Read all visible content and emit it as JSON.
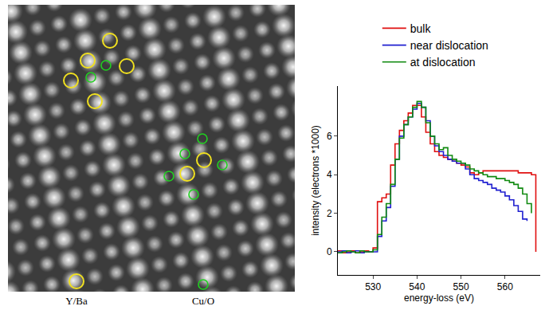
{
  "chart_data": {
    "type": "line",
    "x": [
      522,
      523,
      524,
      525,
      526,
      527,
      528,
      529,
      530,
      531,
      532,
      533,
      534,
      535,
      536,
      537,
      538,
      539,
      540,
      541,
      542,
      543,
      544,
      545,
      546,
      547,
      548,
      549,
      550,
      551,
      552,
      553,
      554,
      555,
      556,
      557,
      558,
      559,
      560,
      561,
      562,
      563,
      564,
      565,
      566,
      567
    ],
    "series": [
      {
        "name": "bulk",
        "color": "#e01010",
        "values": [
          0.05,
          -0.05,
          0.0,
          0.05,
          -0.05,
          0.0,
          0.05,
          0.0,
          0.2,
          2.6,
          2.8,
          3.0,
          4.5,
          5.6,
          6.3,
          6.8,
          7.2,
          7.6,
          7.6,
          7.0,
          6.2,
          5.6,
          5.2,
          5.0,
          4.9,
          4.8,
          4.7,
          4.6,
          4.5,
          4.4,
          4.1,
          4.0,
          4.1,
          4.2,
          4.2,
          4.2,
          4.2,
          4.2,
          4.2,
          4.2,
          4.2,
          4.1,
          4.1,
          4.1,
          4.0,
          0.0
        ]
      },
      {
        "name": "near dislocation",
        "color": "#2020d0",
        "values": [
          0.0,
          0.05,
          -0.05,
          0.0,
          0.05,
          -0.05,
          0.0,
          0.0,
          0.0,
          0.8,
          1.6,
          2.3,
          3.4,
          4.8,
          6.0,
          6.6,
          7.0,
          7.4,
          7.7,
          7.5,
          6.8,
          6.0,
          5.5,
          5.2,
          5.0,
          4.8,
          4.7,
          4.6,
          4.6,
          4.3,
          4.0,
          3.8,
          3.7,
          3.6,
          3.5,
          3.3,
          3.2,
          3.1,
          2.9,
          2.7,
          2.4,
          2.1,
          1.7,
          1.6,
          null,
          null
        ]
      },
      {
        "name": "at dislocation",
        "color": "#108a10",
        "values": [
          -0.05,
          0.0,
          0.05,
          0.0,
          -0.05,
          0.05,
          0.0,
          0.0,
          0.1,
          0.9,
          1.8,
          2.5,
          3.5,
          4.8,
          5.9,
          6.6,
          7.0,
          7.5,
          7.8,
          7.5,
          6.7,
          6.0,
          5.6,
          5.3,
          5.4,
          5.0,
          4.8,
          4.7,
          4.6,
          4.5,
          4.3,
          4.2,
          4.1,
          4.0,
          3.9,
          3.9,
          3.8,
          3.8,
          3.7,
          3.6,
          3.5,
          3.3,
          3.0,
          2.5,
          2.0,
          null
        ]
      }
    ],
    "x_label": "energy-loss (eV)",
    "y_label": "intensity (electrons *1000)",
    "xlim": [
      522,
      568
    ],
    "xticks": [
      530,
      540,
      550,
      560
    ],
    "ylim": [
      -1.2,
      8.6
    ],
    "yticks": [
      0,
      2,
      4,
      6
    ],
    "grid": false,
    "legend": "top"
  },
  "image": {
    "labels": [
      "Y/Ba",
      "Cu/O"
    ]
  }
}
